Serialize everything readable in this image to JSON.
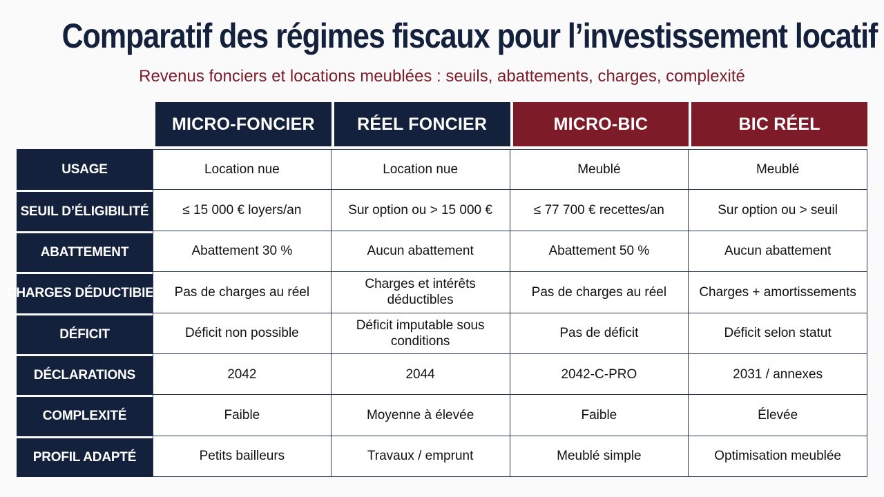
{
  "title": "Comparatif des régimes fiscaux pour l’investissement locatif",
  "subtitle": "Revenus fonciers et locations meublées : seuils, abattements, charges, complexité",
  "colors": {
    "navy": "#14213d",
    "burgundy": "#7d1b28",
    "background": "#fafafa"
  },
  "table": {
    "columns": [
      "MICRO-FONCIER",
      "RÉEL FONCIER",
      "MICRO-BIC",
      "BIC RÉEL"
    ],
    "rows": [
      {
        "label": "USAGE",
        "cells": [
          "Location nue",
          "Location nue",
          "Meublé",
          "Meublé"
        ]
      },
      {
        "label": "SEUIL D’ÉLIGIBILITÉ",
        "cells": [
          "≤ 15 000 € loyers/an",
          "Sur option ou > 15 000 €",
          "≤ 77 700 € recettes/an",
          "Sur option ou > seuil"
        ]
      },
      {
        "label": "ABATTEMENT",
        "cells": [
          "Abattement 30 %",
          "Aucun abattement",
          "Abattement 50 %",
          "Aucun abattement"
        ]
      },
      {
        "label": "CHARGES DÉDUCTIBIES",
        "cells": [
          "Pas de charges au réel",
          "Charges et intérêts déductibles",
          "Pas de charges au réel",
          "Charges + amortissements"
        ]
      },
      {
        "label": "DÉFICIT",
        "cells": [
          "Déficit non possible",
          "Déficit imputable sous conditions",
          "Pas de déficit",
          "Déficit selon statut"
        ]
      },
      {
        "label": "DÉCLARATIONS",
        "cells": [
          "2042",
          "2044",
          "2042-C-PRO",
          "2031 / annexes"
        ]
      },
      {
        "label": "COMPLEXITÉ",
        "cells": [
          "Faible",
          "Moyenne à élevée",
          "Faible",
          "Élevée"
        ]
      },
      {
        "label": "PROFIL ADAPTÉ",
        "cells": [
          "Petits bailleurs",
          "Travaux / emprunt",
          "Meublé simple",
          "Optimisation meublée"
        ]
      }
    ]
  }
}
